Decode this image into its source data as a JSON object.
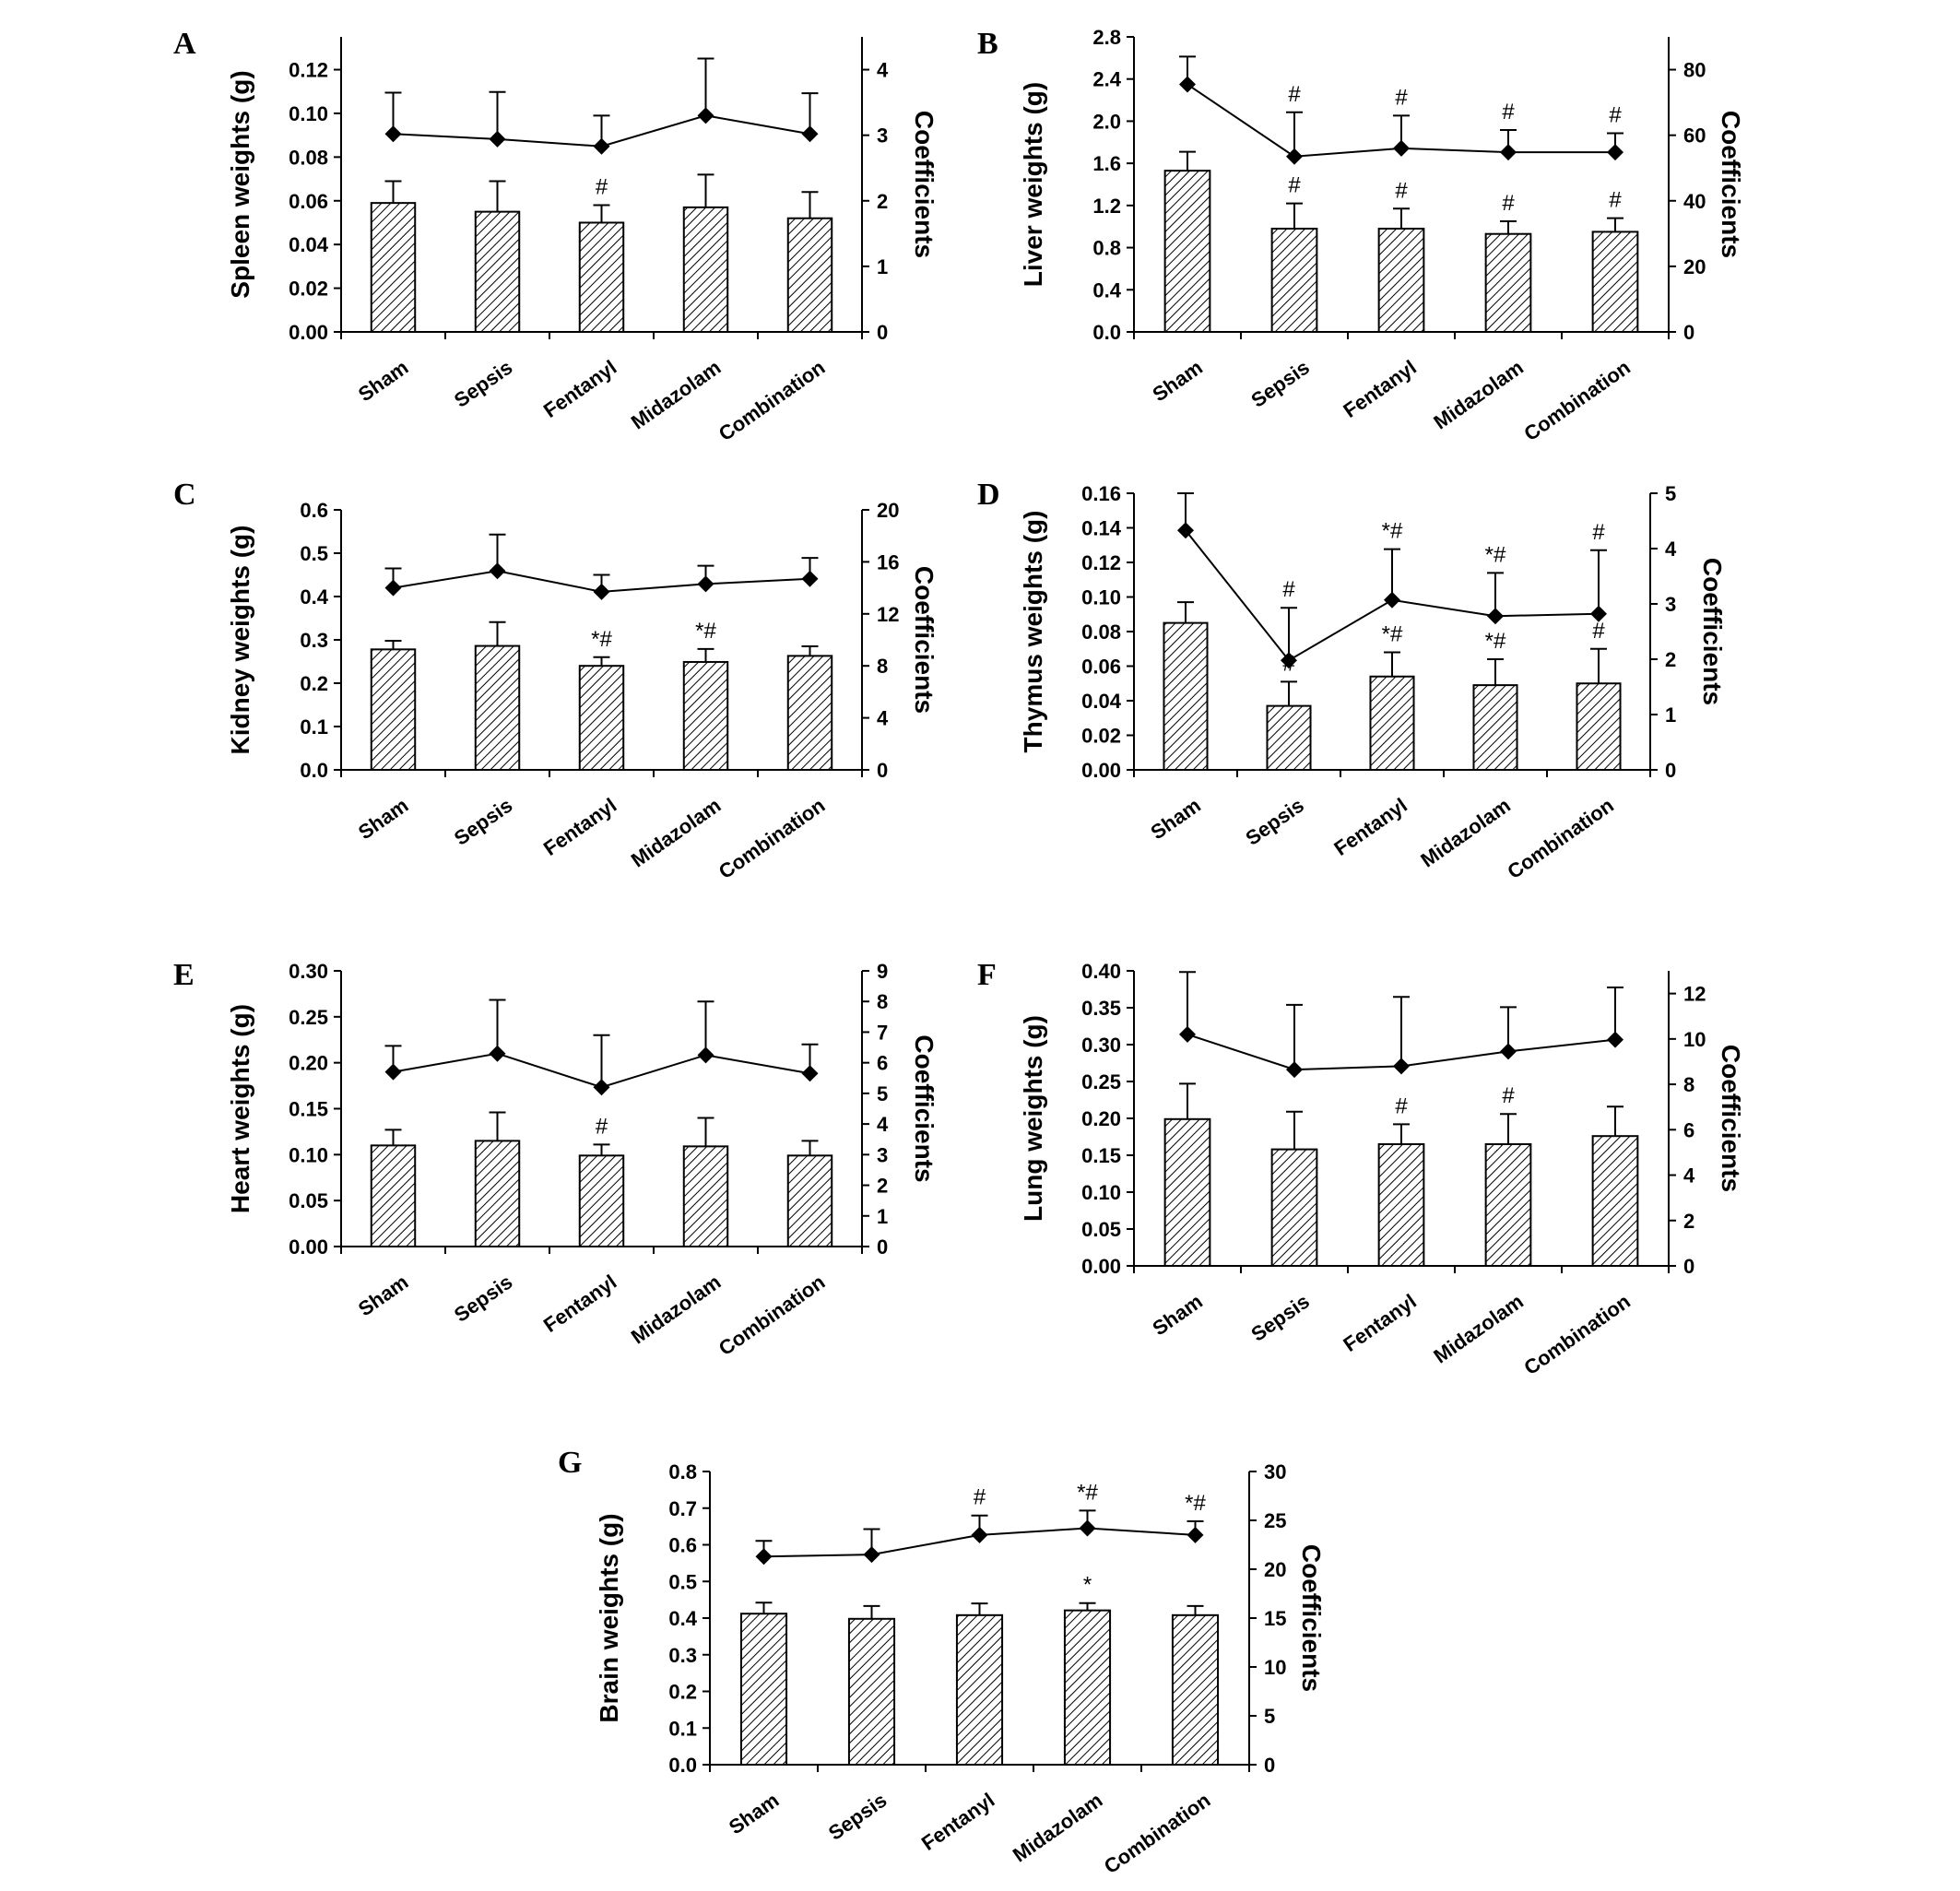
{
  "categories": [
    "Sham",
    "Sepsis",
    "Fentanyl",
    "Midazolam",
    "Combination"
  ],
  "colors": {
    "ink": "#000000",
    "bar_fill": "#ffffff"
  },
  "chart_data": [
    {
      "panel": "A",
      "type": "bar",
      "ylabel": "Spleen weights (g)",
      "y2label": "Coefficients",
      "ylim": [
        0,
        0.135
      ],
      "y2lim": [
        0,
        4.5
      ],
      "yticks": [
        "0.00",
        "0.02",
        "0.04",
        "0.06",
        "0.08",
        "0.10",
        "0.12"
      ],
      "y2ticks": [
        "0",
        "1",
        "2",
        "3",
        "4"
      ],
      "categories": [
        "Sham",
        "Sepsis",
        "Fentanyl",
        "Midazolam",
        "Combination"
      ],
      "bars": [
        0.059,
        0.055,
        0.05,
        0.057,
        0.052
      ],
      "bar_err": [
        0.01,
        0.014,
        0.008,
        0.015,
        0.012
      ],
      "line": [
        3.02,
        2.94,
        2.83,
        3.3,
        3.02
      ],
      "line_err": [
        0.63,
        0.72,
        0.47,
        0.87,
        0.62
      ],
      "bar_marks": [
        "",
        "",
        "#",
        "",
        ""
      ],
      "line_marks": [
        "",
        "",
        "",
        "",
        ""
      ]
    },
    {
      "panel": "B",
      "type": "bar",
      "ylabel": "Liver weights (g)",
      "y2label": "Coefficients",
      "ylim": [
        0,
        2.8
      ],
      "y2lim": [
        0,
        90
      ],
      "yticks": [
        "0.0",
        "0.4",
        "0.8",
        "1.2",
        "1.6",
        "2.0",
        "2.4",
        "2.8"
      ],
      "y2ticks": [
        "0",
        "20",
        "40",
        "60",
        "80"
      ],
      "categories": [
        "Sham",
        "Sepsis",
        "Fentanyl",
        "Midazolam",
        "Combination"
      ],
      "bars": [
        1.53,
        0.98,
        0.98,
        0.93,
        0.95
      ],
      "bar_err": [
        0.18,
        0.24,
        0.19,
        0.12,
        0.13
      ],
      "line": [
        75.5,
        53.5,
        56.0,
        54.8,
        54.8
      ],
      "line_err": [
        8.5,
        13.5,
        10.0,
        6.8,
        5.8
      ],
      "bar_marks": [
        "",
        "#",
        "#",
        "#",
        "#"
      ],
      "line_marks": [
        "",
        "#",
        "#",
        "#",
        "#"
      ]
    },
    {
      "panel": "C",
      "type": "bar",
      "ylabel": "Kidney weights (g)",
      "y2label": "Coefficients",
      "ylim": [
        0,
        0.6
      ],
      "y2lim": [
        0,
        20
      ],
      "yticks": [
        "0.0",
        "0.1",
        "0.2",
        "0.3",
        "0.4",
        "0.5",
        "0.6"
      ],
      "y2ticks": [
        "0",
        "4",
        "8",
        "12",
        "16",
        "20"
      ],
      "categories": [
        "Sham",
        "Sepsis",
        "Fentanyl",
        "Midazolam",
        "Combination"
      ],
      "bars": [
        0.278,
        0.286,
        0.24,
        0.249,
        0.263
      ],
      "bar_err": [
        0.02,
        0.055,
        0.02,
        0.03,
        0.022
      ],
      "line": [
        14.0,
        15.3,
        13.7,
        14.3,
        14.7
      ],
      "line_err": [
        1.5,
        2.8,
        1.3,
        1.4,
        1.6
      ],
      "bar_marks": [
        "",
        "",
        "*#",
        "*#",
        ""
      ],
      "line_marks": [
        "",
        "",
        "",
        "",
        ""
      ]
    },
    {
      "panel": "D",
      "type": "bar",
      "ylabel": "Thymus weights (g)",
      "y2label": "Coefficients",
      "ylim": [
        0,
        0.16
      ],
      "y2lim": [
        0,
        5
      ],
      "yticks": [
        "0.00",
        "0.02",
        "0.04",
        "0.06",
        "0.08",
        "0.10",
        "0.12",
        "0.14",
        "0.16"
      ],
      "y2ticks": [
        "0",
        "1",
        "2",
        "3",
        "4",
        "5"
      ],
      "categories": [
        "Sham",
        "Sepsis",
        "Fentanyl",
        "Midazolam",
        "Combination"
      ],
      "bars": [
        0.085,
        0.037,
        0.054,
        0.049,
        0.05
      ],
      "bar_err": [
        0.012,
        0.014,
        0.014,
        0.015,
        0.02
      ],
      "line": [
        4.33,
        1.98,
        3.07,
        2.78,
        2.82
      ],
      "line_err": [
        0.67,
        0.95,
        0.92,
        0.78,
        1.15
      ],
      "bar_marks": [
        "",
        "#",
        "*#",
        "*#",
        "#"
      ],
      "line_marks": [
        "",
        "#",
        "*#",
        "*#",
        "#"
      ]
    },
    {
      "panel": "E",
      "type": "bar",
      "ylabel": "Heart weights (g)",
      "y2label": "Coefficients",
      "ylim": [
        0,
        0.3
      ],
      "y2lim": [
        0,
        9
      ],
      "yticks": [
        "0.00",
        "0.05",
        "0.10",
        "0.15",
        "0.20",
        "0.25",
        "0.30"
      ],
      "y2ticks": [
        "0",
        "1",
        "2",
        "3",
        "4",
        "5",
        "6",
        "7",
        "8",
        "9"
      ],
      "categories": [
        "Sham",
        "Sepsis",
        "Fentanyl",
        "Midazolam",
        "Combination"
      ],
      "bars": [
        0.11,
        0.115,
        0.099,
        0.109,
        0.099
      ],
      "bar_err": [
        0.017,
        0.031,
        0.012,
        0.031,
        0.016
      ],
      "line": [
        5.7,
        6.3,
        5.2,
        6.25,
        5.65
      ],
      "line_err": [
        0.85,
        1.75,
        1.7,
        1.75,
        0.95
      ],
      "bar_marks": [
        "",
        "",
        "#",
        "",
        ""
      ],
      "line_marks": [
        "",
        "",
        "",
        "",
        ""
      ]
    },
    {
      "panel": "F",
      "type": "bar",
      "ylabel": "Lung weights (g)",
      "y2label": "Coefficients",
      "ylim": [
        0,
        0.4
      ],
      "y2lim": [
        0,
        13
      ],
      "yticks": [
        "0.00",
        "0.05",
        "0.10",
        "0.15",
        "0.20",
        "0.25",
        "0.30",
        "0.35",
        "0.40"
      ],
      "y2ticks": [
        "0",
        "2",
        "4",
        "6",
        "8",
        "10",
        "12"
      ],
      "categories": [
        "Sham",
        "Sepsis",
        "Fentanyl",
        "Midazolam",
        "Combination"
      ],
      "bars": [
        0.199,
        0.158,
        0.165,
        0.165,
        0.176
      ],
      "bar_err": [
        0.048,
        0.051,
        0.027,
        0.041,
        0.04
      ],
      "line": [
        10.2,
        8.65,
        8.8,
        9.45,
        9.97
      ],
      "line_err": [
        2.75,
        2.85,
        3.05,
        1.95,
        2.3
      ],
      "bar_marks": [
        "",
        "",
        "#",
        "#",
        ""
      ],
      "line_marks": [
        "",
        "",
        "",
        "",
        ""
      ]
    },
    {
      "panel": "G",
      "type": "bar",
      "ylabel": "Brain weights (g)",
      "y2label": "Coefficients",
      "ylim": [
        0,
        0.8
      ],
      "y2lim": [
        0,
        30
      ],
      "yticks": [
        "0.0",
        "0.1",
        "0.2",
        "0.3",
        "0.4",
        "0.5",
        "0.6",
        "0.7",
        "0.8"
      ],
      "y2ticks": [
        "0",
        "5",
        "10",
        "15",
        "20",
        "25",
        "30"
      ],
      "categories": [
        "Sham",
        "Sepsis",
        "Fentanyl",
        "Midazolam",
        "Combination"
      ],
      "bars": [
        0.412,
        0.398,
        0.408,
        0.421,
        0.408
      ],
      "bar_err": [
        0.03,
        0.035,
        0.032,
        0.02,
        0.025
      ],
      "line": [
        21.3,
        21.5,
        23.5,
        24.2,
        23.5
      ],
      "line_err": [
        1.6,
        2.6,
        2.0,
        1.8,
        1.4
      ],
      "bar_marks": [
        "",
        "",
        "",
        "*",
        ""
      ],
      "line_marks": [
        "",
        "",
        "#",
        "*#",
        "*#"
      ]
    }
  ]
}
